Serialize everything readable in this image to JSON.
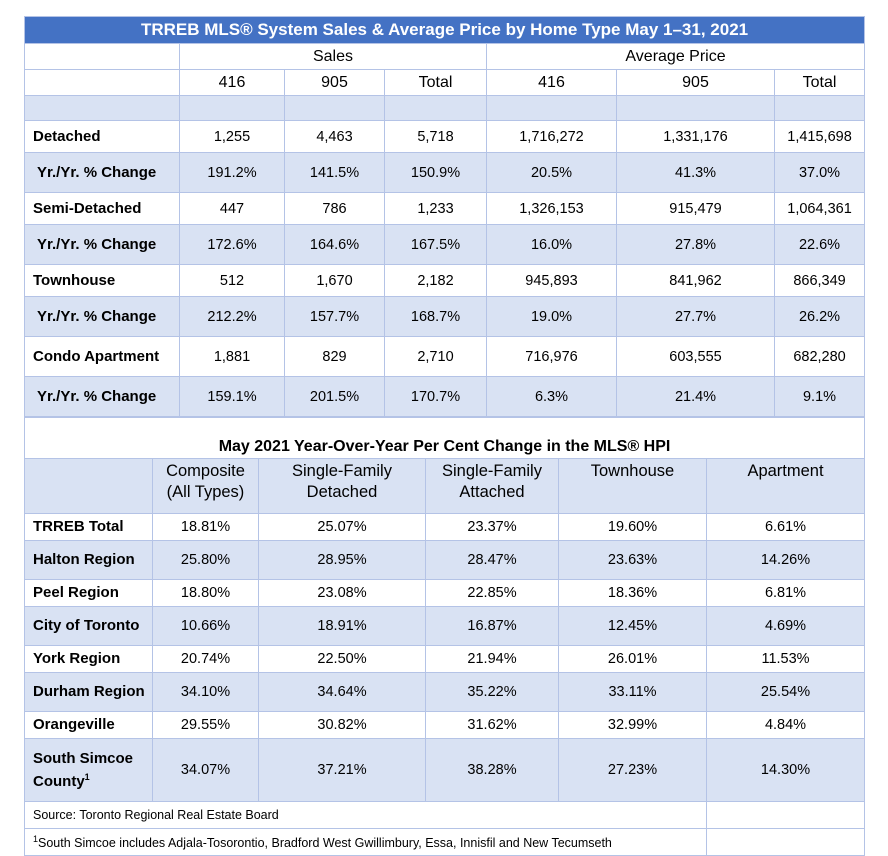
{
  "table1": {
    "title": "TRREB MLS® System Sales & Average Price by Home Type May 1–31, 2021",
    "group_headers": [
      "Sales",
      "Average Price"
    ],
    "col_headers": [
      "416",
      "905",
      "Total",
      "416",
      "905",
      "Total"
    ],
    "rows": [
      {
        "label": "Detached",
        "values": [
          "1,255",
          "4,463",
          "5,718",
          "1,716,272",
          "1,331,176",
          "1,415,698"
        ]
      },
      {
        "label": "Yr./Yr. % Change",
        "values": [
          "191.2%",
          "141.5%",
          "150.9%",
          "20.5%",
          "41.3%",
          "37.0%"
        ]
      },
      {
        "label": "Semi-Detached",
        "values": [
          "447",
          "786",
          "1,233",
          "1,326,153",
          "915,479",
          "1,064,361"
        ]
      },
      {
        "label": "Yr./Yr. % Change",
        "values": [
          "172.6%",
          "164.6%",
          "167.5%",
          "16.0%",
          "27.8%",
          "22.6%"
        ]
      },
      {
        "label": "Townhouse",
        "values": [
          "512",
          "1,670",
          "2,182",
          "945,893",
          "841,962",
          "866,349"
        ]
      },
      {
        "label": "Yr./Yr. % Change",
        "values": [
          "212.2%",
          "157.7%",
          "168.7%",
          "19.0%",
          "27.7%",
          "26.2%"
        ]
      },
      {
        "label": "Condo Apartment",
        "values": [
          "1,881",
          "829",
          "2,710",
          "716,976",
          "603,555",
          "682,280"
        ]
      },
      {
        "label": "Yr./Yr. % Change",
        "values": [
          "159.1%",
          "201.5%",
          "170.7%",
          "6.3%",
          "21.4%",
          "9.1%"
        ]
      }
    ]
  },
  "table2": {
    "title": "May 2021 Year-Over-Year Per Cent Change in the MLS® HPI",
    "col_headers": [
      "Composite (All Types)",
      "Single-Family Detached",
      "Single-Family Attached",
      "Townhouse",
      "Apartment"
    ],
    "rows": [
      {
        "label": "TRREB Total",
        "values": [
          "18.81%",
          "25.07%",
          "23.37%",
          "19.60%",
          "6.61%"
        ]
      },
      {
        "label": "Halton Region",
        "values": [
          "25.80%",
          "28.95%",
          "28.47%",
          "23.63%",
          "14.26%"
        ]
      },
      {
        "label": "Peel Region",
        "values": [
          "18.80%",
          "23.08%",
          "22.85%",
          "18.36%",
          "6.81%"
        ]
      },
      {
        "label": "City of Toronto",
        "values": [
          "10.66%",
          "18.91%",
          "16.87%",
          "12.45%",
          "4.69%"
        ]
      },
      {
        "label": "York Region",
        "values": [
          "20.74%",
          "22.50%",
          "21.94%",
          "26.01%",
          "11.53%"
        ]
      },
      {
        "label": "Durham Region",
        "values": [
          "34.10%",
          "34.64%",
          "35.22%",
          "33.11%",
          "25.54%"
        ]
      },
      {
        "label": "Orangeville",
        "values": [
          "29.55%",
          "30.82%",
          "31.62%",
          "32.99%",
          "4.84%"
        ]
      },
      {
        "label": "South Simcoe County",
        "footnote_mark": "1",
        "values": [
          "34.07%",
          "37.21%",
          "38.28%",
          "27.23%",
          "14.30%"
        ]
      }
    ]
  },
  "footer": {
    "source": "Source: Toronto Regional Real Estate Board",
    "footnote_mark": "1",
    "footnote": "South Simcoe includes Adjala-Tosorontio, Bradford West Gwillimbury, Essa, Innisfil and New Tecumseth"
  },
  "colors": {
    "title_bg": "#4472c4",
    "band": "#d9e2f3",
    "border": "#b4c3e6"
  }
}
